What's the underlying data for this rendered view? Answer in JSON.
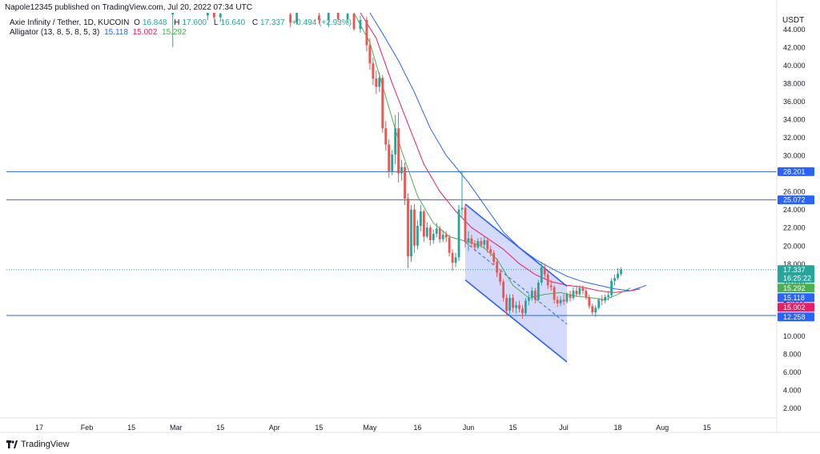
{
  "publisher": "Napole12345 published on TradingView.com, Jul 20, 2022 07:34 UTC",
  "legend": {
    "symbol": "Axie Infinity / Tether, 1D, KUCOIN",
    "o_key": "O",
    "o_val": "16.848",
    "h_key": "H",
    "h_val": "17.600",
    "l_key": "L",
    "l_val": "16.640",
    "c_key": "C",
    "c_val": "17.337",
    "change": "+0.494 (+2.93%)",
    "alligator_label": "Alligator (13, 8, 5, 8, 5, 3)",
    "alligator_jaw": "15.118",
    "alligator_teeth": "15.002",
    "alligator_lips": "15.292"
  },
  "currency": "USDT",
  "brand": "TradingView",
  "colors": {
    "up": "#26a69a",
    "down": "#ef5350",
    "jaw": "#2962ff",
    "teeth": "#e91e63",
    "lips": "#4caf50",
    "hline": "#2962ff",
    "channel_fill": "#c5cdfb",
    "channel_line": "#2962ff"
  },
  "chart_data": {
    "type": "candlestick",
    "y_axis": {
      "scale": "linear",
      "min": 0.9,
      "max": 45.8,
      "ticks": [
        "44.000",
        "42.000",
        "40.000",
        "38.000",
        "36.000",
        "34.000",
        "32.000",
        "30.000",
        "28.000",
        "26.000",
        "24.000",
        "22.000",
        "20.000",
        "18.000",
        "16.000",
        "14.000",
        "12.000",
        "10.000",
        "8.000",
        "6.000",
        "4.000",
        "2.000"
      ]
    },
    "x_axis": {
      "labels": [
        {
          "t": "17",
          "date": "2022-01-17"
        },
        {
          "t": "Feb",
          "date": "2022-02-01"
        },
        {
          "t": "15",
          "date": "2022-02-15"
        },
        {
          "t": "Mar",
          "date": "2022-03-01"
        },
        {
          "t": "15",
          "date": "2022-03-15"
        },
        {
          "t": "Apr",
          "date": "2022-04-01"
        },
        {
          "t": "15",
          "date": "2022-04-15"
        },
        {
          "t": "May",
          "date": "2022-05-01"
        },
        {
          "t": "16",
          "date": "2022-05-16"
        },
        {
          "t": "Jun",
          "date": "2022-06-01"
        },
        {
          "t": "15",
          "date": "2022-06-15"
        },
        {
          "t": "Jul",
          "date": "2022-07-01"
        },
        {
          "t": "18",
          "date": "2022-07-18"
        },
        {
          "t": "Aug",
          "date": "2022-08-01"
        },
        {
          "t": "15",
          "date": "2022-08-15"
        }
      ]
    },
    "horizontal_lines": [
      {
        "value": 28.201,
        "label": "28.201"
      },
      {
        "value": 25.072,
        "label": "25.072"
      },
      {
        "value": 12.258,
        "label": "12.258"
      }
    ],
    "price_badges": [
      {
        "label": "17.337",
        "sub": "16:25:22",
        "value": 17.337,
        "color": "#26a69a"
      },
      {
        "label": "15.292",
        "value": 15.292,
        "color": "#4caf50"
      },
      {
        "label": "15.118",
        "value": 15.118,
        "color": "#2962ff"
      },
      {
        "label": "15.002",
        "value": 15.002,
        "color": "#e91e63"
      },
      {
        "label": "12.258",
        "value": 12.258,
        "color": "#2962ff"
      }
    ],
    "channel": {
      "upper": [
        {
          "date": "2022-05-31",
          "value": 24.6
        },
        {
          "date": "2022-07-02",
          "value": 15.5
        }
      ],
      "lower": [
        {
          "date": "2022-05-31",
          "value": 16.2
        },
        {
          "date": "2022-07-02",
          "value": 7.1
        }
      ],
      "midline": [
        {
          "date": "2022-05-31",
          "value": 20.4
        },
        {
          "date": "2022-07-02",
          "value": 11.3
        }
      ]
    },
    "candles": [
      {
        "date": "2022-02-28",
        "o": 45.6,
        "h": 46.0,
        "l": 42.0,
        "c": 45.9
      },
      {
        "date": "2022-03-11",
        "o": 45.5,
        "h": 46.2,
        "l": 45.0,
        "c": 45.8
      },
      {
        "date": "2022-03-13",
        "o": 45.9,
        "h": 46.2,
        "l": 45.1,
        "c": 45.3
      },
      {
        "date": "2022-03-15",
        "o": 45.3,
        "h": 46.0,
        "l": 44.8,
        "c": 45.7
      },
      {
        "date": "2022-04-06",
        "o": 45.6,
        "h": 46.1,
        "l": 44.2,
        "c": 44.7
      },
      {
        "date": "2022-04-08",
        "o": 44.7,
        "h": 46.0,
        "l": 44.5,
        "c": 45.9
      },
      {
        "date": "2022-04-15",
        "o": 45.5,
        "h": 46.0,
        "l": 44.6,
        "c": 45.0
      },
      {
        "date": "2022-04-18",
        "o": 45.0,
        "h": 46.1,
        "l": 44.2,
        "c": 45.9
      },
      {
        "date": "2022-04-21",
        "o": 45.9,
        "h": 46.0,
        "l": 44.8,
        "c": 45.1
      },
      {
        "date": "2022-04-24",
        "o": 45.1,
        "h": 46.0,
        "l": 44.7,
        "c": 45.7
      },
      {
        "date": "2022-04-26",
        "o": 45.7,
        "h": 45.9,
        "l": 43.8,
        "c": 44.0
      },
      {
        "date": "2022-04-28",
        "o": 44.0,
        "h": 45.5,
        "l": 43.6,
        "c": 45.0
      },
      {
        "date": "2022-04-30",
        "o": 45.0,
        "h": 45.4,
        "l": 41.5,
        "c": 42.2
      },
      {
        "date": "2022-05-01",
        "o": 42.2,
        "h": 43.0,
        "l": 39.5,
        "c": 40.2
      },
      {
        "date": "2022-05-02",
        "o": 40.2,
        "h": 40.8,
        "l": 37.8,
        "c": 38.5
      },
      {
        "date": "2022-05-03",
        "o": 38.5,
        "h": 39.4,
        "l": 36.8,
        "c": 37.6
      },
      {
        "date": "2022-05-04",
        "o": 37.6,
        "h": 39.2,
        "l": 37.0,
        "c": 38.6
      },
      {
        "date": "2022-05-05",
        "o": 38.6,
        "h": 38.9,
        "l": 32.5,
        "c": 33.0
      },
      {
        "date": "2022-05-06",
        "o": 33.0,
        "h": 33.8,
        "l": 30.5,
        "c": 31.2
      },
      {
        "date": "2022-05-07",
        "o": 31.2,
        "h": 31.8,
        "l": 27.5,
        "c": 28.2
      },
      {
        "date": "2022-05-08",
        "o": 28.2,
        "h": 30.6,
        "l": 27.8,
        "c": 30.1
      },
      {
        "date": "2022-05-09",
        "o": 30.1,
        "h": 34.5,
        "l": 29.0,
        "c": 33.0
      },
      {
        "date": "2022-05-10",
        "o": 33.0,
        "h": 34.8,
        "l": 27.0,
        "c": 28.0
      },
      {
        "date": "2022-05-11",
        "o": 28.0,
        "h": 29.5,
        "l": 27.2,
        "c": 28.7
      },
      {
        "date": "2022-05-12",
        "o": 28.7,
        "h": 29.2,
        "l": 24.5,
        "c": 25.2
      },
      {
        "date": "2022-05-13",
        "o": 25.2,
        "h": 25.8,
        "l": 17.5,
        "c": 18.8
      },
      {
        "date": "2022-05-14",
        "o": 18.8,
        "h": 24.5,
        "l": 18.2,
        "c": 24.0
      },
      {
        "date": "2022-05-15",
        "o": 24.0,
        "h": 24.6,
        "l": 19.2,
        "c": 20.0
      },
      {
        "date": "2022-05-16",
        "o": 20.0,
        "h": 22.8,
        "l": 19.6,
        "c": 22.2
      },
      {
        "date": "2022-05-17",
        "o": 22.2,
        "h": 24.5,
        "l": 21.6,
        "c": 23.8
      },
      {
        "date": "2022-05-18",
        "o": 23.8,
        "h": 24.0,
        "l": 20.4,
        "c": 21.0
      },
      {
        "date": "2022-05-19",
        "o": 21.0,
        "h": 22.6,
        "l": 20.8,
        "c": 22.0
      },
      {
        "date": "2022-05-20",
        "o": 22.0,
        "h": 22.3,
        "l": 20.0,
        "c": 20.6
      },
      {
        "date": "2022-05-21",
        "o": 20.6,
        "h": 21.8,
        "l": 20.2,
        "c": 21.3
      },
      {
        "date": "2022-05-22",
        "o": 21.3,
        "h": 22.5,
        "l": 20.9,
        "c": 21.9
      },
      {
        "date": "2022-05-23",
        "o": 21.9,
        "h": 22.2,
        "l": 20.3,
        "c": 20.7
      },
      {
        "date": "2022-05-24",
        "o": 20.7,
        "h": 21.7,
        "l": 20.4,
        "c": 21.2
      },
      {
        "date": "2022-05-25",
        "o": 21.2,
        "h": 21.6,
        "l": 20.4,
        "c": 20.9
      },
      {
        "date": "2022-05-26",
        "o": 20.9,
        "h": 21.2,
        "l": 18.8,
        "c": 19.2
      },
      {
        "date": "2022-05-27",
        "o": 19.2,
        "h": 19.6,
        "l": 17.2,
        "c": 18.1
      },
      {
        "date": "2022-05-28",
        "o": 18.1,
        "h": 19.2,
        "l": 17.6,
        "c": 18.7
      },
      {
        "date": "2022-05-29",
        "o": 18.7,
        "h": 24.5,
        "l": 18.3,
        "c": 24.0
      },
      {
        "date": "2022-05-30",
        "o": 24.0,
        "h": 28.3,
        "l": 23.2,
        "c": 24.2
      },
      {
        "date": "2022-05-31",
        "o": 24.2,
        "h": 24.6,
        "l": 19.8,
        "c": 20.4
      },
      {
        "date": "2022-06-01",
        "o": 20.4,
        "h": 21.6,
        "l": 19.4,
        "c": 20.8
      },
      {
        "date": "2022-06-02",
        "o": 20.8,
        "h": 21.2,
        "l": 19.8,
        "c": 20.2
      },
      {
        "date": "2022-06-03",
        "o": 20.2,
        "h": 20.6,
        "l": 19.4,
        "c": 19.8
      },
      {
        "date": "2022-06-04",
        "o": 19.8,
        "h": 20.8,
        "l": 19.6,
        "c": 20.5
      },
      {
        "date": "2022-06-05",
        "o": 20.5,
        "h": 20.9,
        "l": 19.8,
        "c": 20.1
      },
      {
        "date": "2022-06-06",
        "o": 20.1,
        "h": 21.0,
        "l": 19.7,
        "c": 20.6
      },
      {
        "date": "2022-06-07",
        "o": 20.6,
        "h": 20.9,
        "l": 19.2,
        "c": 19.6
      },
      {
        "date": "2022-06-08",
        "o": 19.6,
        "h": 20.0,
        "l": 18.8,
        "c": 19.2
      },
      {
        "date": "2022-06-09",
        "o": 19.2,
        "h": 19.5,
        "l": 17.8,
        "c": 18.2
      },
      {
        "date": "2022-06-10",
        "o": 18.2,
        "h": 18.6,
        "l": 16.5,
        "c": 17.0
      },
      {
        "date": "2022-06-11",
        "o": 17.0,
        "h": 17.4,
        "l": 15.6,
        "c": 16.0
      },
      {
        "date": "2022-06-12",
        "o": 16.0,
        "h": 16.3,
        "l": 13.8,
        "c": 14.2
      },
      {
        "date": "2022-06-13",
        "o": 14.2,
        "h": 14.6,
        "l": 12.2,
        "c": 12.8
      },
      {
        "date": "2022-06-14",
        "o": 12.8,
        "h": 14.6,
        "l": 12.4,
        "c": 14.2
      },
      {
        "date": "2022-06-15",
        "o": 14.2,
        "h": 14.6,
        "l": 12.6,
        "c": 13.1
      },
      {
        "date": "2022-06-16",
        "o": 13.1,
        "h": 13.8,
        "l": 12.5,
        "c": 13.4
      },
      {
        "date": "2022-06-17",
        "o": 13.4,
        "h": 13.9,
        "l": 12.6,
        "c": 13.0
      },
      {
        "date": "2022-06-18",
        "o": 13.0,
        "h": 13.4,
        "l": 11.9,
        "c": 12.5
      },
      {
        "date": "2022-06-19",
        "o": 12.5,
        "h": 14.2,
        "l": 12.3,
        "c": 13.9
      },
      {
        "date": "2022-06-20",
        "o": 13.9,
        "h": 14.6,
        "l": 13.4,
        "c": 14.2
      },
      {
        "date": "2022-06-21",
        "o": 14.2,
        "h": 15.4,
        "l": 13.9,
        "c": 15.0
      },
      {
        "date": "2022-06-22",
        "o": 15.0,
        "h": 15.3,
        "l": 13.6,
        "c": 14.0
      },
      {
        "date": "2022-06-23",
        "o": 14.0,
        "h": 16.2,
        "l": 13.8,
        "c": 15.9
      },
      {
        "date": "2022-06-24",
        "o": 15.9,
        "h": 18.2,
        "l": 15.6,
        "c": 17.6
      },
      {
        "date": "2022-06-25",
        "o": 17.6,
        "h": 18.0,
        "l": 16.4,
        "c": 16.8
      },
      {
        "date": "2022-06-26",
        "o": 16.8,
        "h": 17.2,
        "l": 15.2,
        "c": 15.6
      },
      {
        "date": "2022-06-27",
        "o": 15.6,
        "h": 16.2,
        "l": 15.0,
        "c": 15.4
      },
      {
        "date": "2022-06-28",
        "o": 15.4,
        "h": 15.6,
        "l": 13.6,
        "c": 14.0
      },
      {
        "date": "2022-06-29",
        "o": 14.0,
        "h": 14.4,
        "l": 13.2,
        "c": 13.6
      },
      {
        "date": "2022-06-30",
        "o": 13.6,
        "h": 14.4,
        "l": 13.3,
        "c": 14.0
      },
      {
        "date": "2022-07-01",
        "o": 14.0,
        "h": 14.6,
        "l": 13.4,
        "c": 13.8
      },
      {
        "date": "2022-07-02",
        "o": 13.8,
        "h": 14.8,
        "l": 13.6,
        "c": 14.6
      },
      {
        "date": "2022-07-03",
        "o": 14.6,
        "h": 15.0,
        "l": 13.8,
        "c": 14.2
      },
      {
        "date": "2022-07-04",
        "o": 14.2,
        "h": 15.4,
        "l": 14.0,
        "c": 15.0
      },
      {
        "date": "2022-07-05",
        "o": 15.0,
        "h": 15.6,
        "l": 14.3,
        "c": 14.6
      },
      {
        "date": "2022-07-06",
        "o": 14.6,
        "h": 15.6,
        "l": 14.4,
        "c": 15.3
      },
      {
        "date": "2022-07-07",
        "o": 15.3,
        "h": 15.6,
        "l": 14.6,
        "c": 15.0
      },
      {
        "date": "2022-07-08",
        "o": 15.0,
        "h": 15.3,
        "l": 14.0,
        "c": 14.3
      },
      {
        "date": "2022-07-09",
        "o": 14.3,
        "h": 14.6,
        "l": 13.0,
        "c": 13.3
      },
      {
        "date": "2022-07-10",
        "o": 13.3,
        "h": 13.6,
        "l": 12.2,
        "c": 12.6
      },
      {
        "date": "2022-07-11",
        "o": 12.6,
        "h": 13.4,
        "l": 12.1,
        "c": 13.1
      },
      {
        "date": "2022-07-12",
        "o": 13.1,
        "h": 14.2,
        "l": 12.9,
        "c": 14.0
      },
      {
        "date": "2022-07-13",
        "o": 14.0,
        "h": 14.5,
        "l": 13.4,
        "c": 13.9
      },
      {
        "date": "2022-07-14",
        "o": 13.9,
        "h": 14.6,
        "l": 13.6,
        "c": 14.3
      },
      {
        "date": "2022-07-15",
        "o": 14.3,
        "h": 14.8,
        "l": 13.9,
        "c": 14.5
      },
      {
        "date": "2022-07-16",
        "o": 14.5,
        "h": 16.4,
        "l": 14.2,
        "c": 16.1
      },
      {
        "date": "2022-07-17",
        "o": 16.1,
        "h": 16.8,
        "l": 15.6,
        "c": 16.4
      },
      {
        "date": "2022-07-18",
        "o": 16.4,
        "h": 17.5,
        "l": 16.2,
        "c": 16.9
      },
      {
        "date": "2022-07-19",
        "o": 16.848,
        "h": 17.6,
        "l": 16.64,
        "c": 17.337
      }
    ],
    "alligator": {
      "jaw": [
        {
          "date": "2022-05-01",
          "v": 45.8
        },
        {
          "date": "2022-05-05",
          "v": 43.5
        },
        {
          "date": "2022-05-10",
          "v": 40.5
        },
        {
          "date": "2022-05-15",
          "v": 37.0
        },
        {
          "date": "2022-05-20",
          "v": 33.0
        },
        {
          "date": "2022-05-25",
          "v": 30.0
        },
        {
          "date": "2022-06-01",
          "v": 27.0
        },
        {
          "date": "2022-06-07",
          "v": 24.0
        },
        {
          "date": "2022-06-12",
          "v": 21.5
        },
        {
          "date": "2022-06-17",
          "v": 19.8
        },
        {
          "date": "2022-06-22",
          "v": 18.5
        },
        {
          "date": "2022-06-27",
          "v": 17.5
        },
        {
          "date": "2022-07-02",
          "v": 16.6
        },
        {
          "date": "2022-07-07",
          "v": 16.0
        },
        {
          "date": "2022-07-12",
          "v": 15.6
        },
        {
          "date": "2022-07-17",
          "v": 15.2
        },
        {
          "date": "2022-07-22",
          "v": 15.0
        },
        {
          "date": "2022-07-27",
          "v": 15.6
        }
      ],
      "teeth": [
        {
          "date": "2022-04-28",
          "v": 45.8
        },
        {
          "date": "2022-05-03",
          "v": 43.0
        },
        {
          "date": "2022-05-08",
          "v": 38.0
        },
        {
          "date": "2022-05-13",
          "v": 33.5
        },
        {
          "date": "2022-05-18",
          "v": 29.0
        },
        {
          "date": "2022-05-23",
          "v": 26.0
        },
        {
          "date": "2022-05-28",
          "v": 23.8
        },
        {
          "date": "2022-06-02",
          "v": 22.0
        },
        {
          "date": "2022-06-07",
          "v": 20.8
        },
        {
          "date": "2022-06-12",
          "v": 19.6
        },
        {
          "date": "2022-06-17",
          "v": 18.0
        },
        {
          "date": "2022-06-22",
          "v": 16.8
        },
        {
          "date": "2022-06-27",
          "v": 16.0
        },
        {
          "date": "2022-07-02",
          "v": 15.6
        },
        {
          "date": "2022-07-07",
          "v": 15.4
        },
        {
          "date": "2022-07-12",
          "v": 15.0
        },
        {
          "date": "2022-07-17",
          "v": 14.8
        },
        {
          "date": "2022-07-22",
          "v": 15.0
        },
        {
          "date": "2022-07-25",
          "v": 15.2
        }
      ],
      "lips": [
        {
          "date": "2022-04-26",
          "v": 45.8
        },
        {
          "date": "2022-05-01",
          "v": 42.5
        },
        {
          "date": "2022-05-06",
          "v": 36.5
        },
        {
          "date": "2022-05-11",
          "v": 30.5
        },
        {
          "date": "2022-05-16",
          "v": 25.5
        },
        {
          "date": "2022-05-21",
          "v": 22.5
        },
        {
          "date": "2022-05-26",
          "v": 21.0
        },
        {
          "date": "2022-05-31",
          "v": 20.5
        },
        {
          "date": "2022-06-05",
          "v": 20.0
        },
        {
          "date": "2022-06-10",
          "v": 18.5
        },
        {
          "date": "2022-06-15",
          "v": 15.6
        },
        {
          "date": "2022-06-20",
          "v": 14.2
        },
        {
          "date": "2022-06-25",
          "v": 14.6
        },
        {
          "date": "2022-06-30",
          "v": 14.8
        },
        {
          "date": "2022-07-05",
          "v": 14.4
        },
        {
          "date": "2022-07-10",
          "v": 14.2
        },
        {
          "date": "2022-07-14",
          "v": 14.0
        },
        {
          "date": "2022-07-18",
          "v": 14.6
        },
        {
          "date": "2022-07-22",
          "v": 15.3
        }
      ]
    }
  }
}
